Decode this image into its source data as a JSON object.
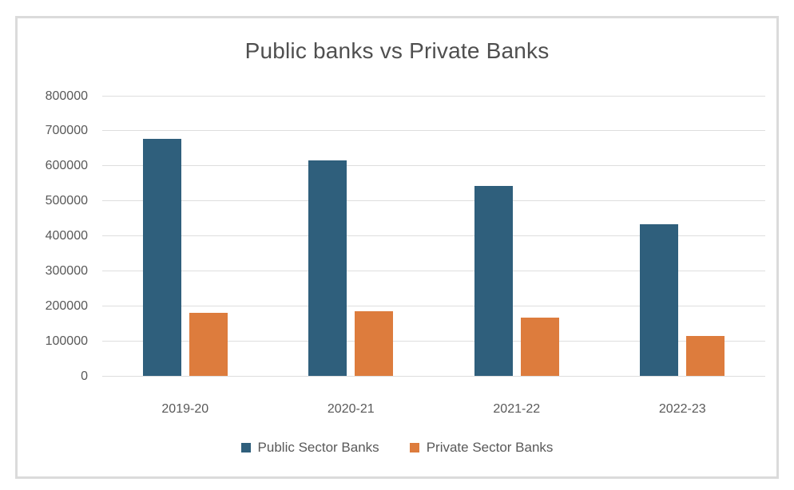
{
  "chart_data": {
    "type": "bar",
    "title": "Public banks vs Private Banks",
    "categories": [
      "2019-20",
      "2020-21",
      "2021-22",
      "2022-23"
    ],
    "series": [
      {
        "name": "Public Sector Banks",
        "color": "#2F5F7C",
        "values": [
          678000,
          615000,
          542000,
          434000
        ]
      },
      {
        "name": "Private Sector Banks",
        "color": "#DD7C3D",
        "values": [
          179000,
          184000,
          166000,
          114000
        ]
      }
    ],
    "ylim": [
      0,
      800000
    ],
    "yticks": [
      0,
      100000,
      200000,
      300000,
      400000,
      500000,
      600000,
      700000,
      800000
    ],
    "ytick_labels": [
      "0",
      "100000",
      "200000",
      "300000",
      "400000",
      "500000",
      "600000",
      "700000",
      "800000"
    ],
    "grid": true,
    "legend_position": "bottom"
  },
  "colors": {
    "grid": "#DEDEDE",
    "axis_text": "#595959",
    "title_text": "#4F4F4F",
    "frame_border": "#DBDBDB",
    "background": "#FFFFFF"
  }
}
